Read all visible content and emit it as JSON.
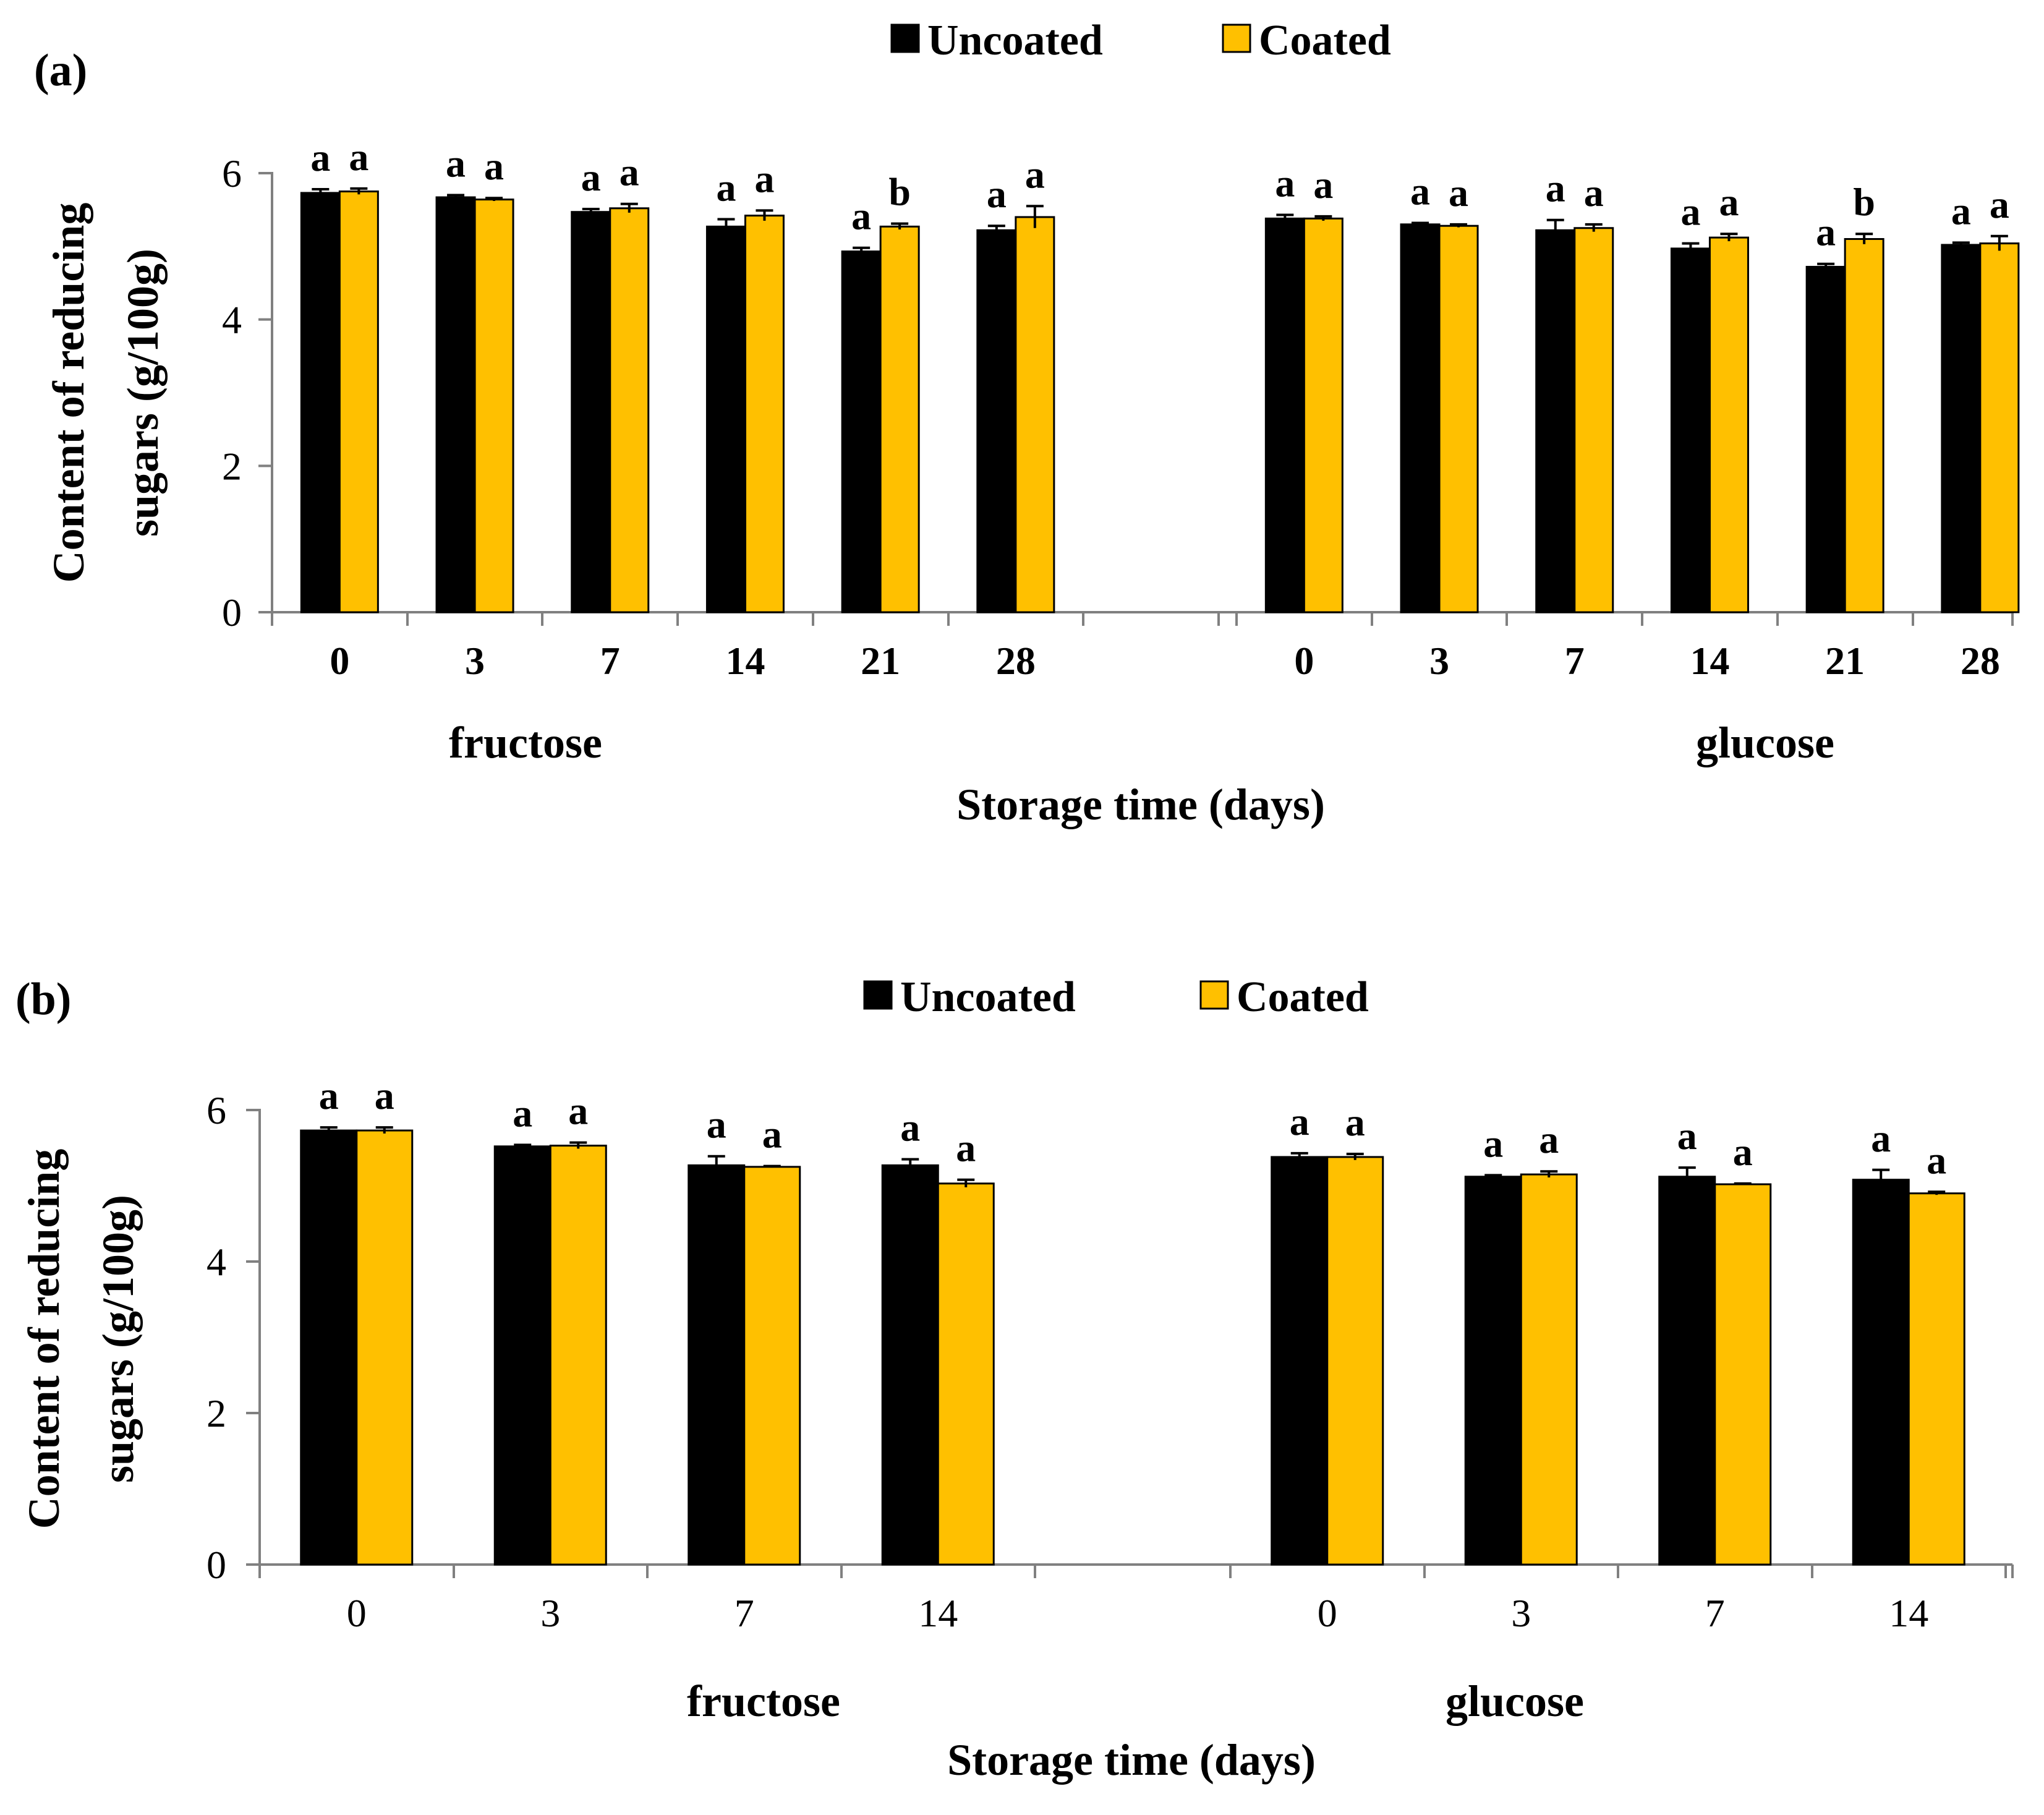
{
  "chart_data": [
    {
      "panel_label": "(a)",
      "type": "bar",
      "ylabel_line1": "Content of reducing",
      "ylabel_line2": "sugars (g/100g)",
      "xlabel": "Storage time (days)",
      "ylim": [
        0,
        6
      ],
      "yticks": [
        "0",
        "2",
        "4",
        "6"
      ],
      "legend": [
        "Uncoated",
        "Coated"
      ],
      "groups": [
        {
          "name": "fructose",
          "categories": [
            "0",
            "3",
            "7",
            "14",
            "21",
            "28"
          ],
          "series": [
            {
              "name": "Uncoated",
              "values": [
                5.73,
                5.67,
                5.47,
                5.27,
                4.93,
                5.22
              ],
              "errors": [
                0.05,
                0.03,
                0.04,
                0.1,
                0.05,
                0.06
              ],
              "letters": [
                "a",
                "a",
                "a",
                "a",
                "a",
                "a"
              ]
            },
            {
              "name": "Coated",
              "values": [
                5.75,
                5.64,
                5.52,
                5.42,
                5.27,
                5.4
              ],
              "errors": [
                0.04,
                0.02,
                0.06,
                0.07,
                0.04,
                0.15
              ],
              "letters": [
                "a",
                "a",
                "a",
                "a",
                "b",
                "a"
              ]
            }
          ]
        },
        {
          "name": "glucose",
          "categories": [
            "0",
            "3",
            "7",
            "14",
            "21",
            "28"
          ],
          "series": [
            {
              "name": "Uncoated",
              "values": [
                5.38,
                5.3,
                5.22,
                4.97,
                4.72,
                5.02
              ],
              "errors": [
                0.05,
                0.02,
                0.14,
                0.07,
                0.04,
                0.03
              ],
              "letters": [
                "a",
                "a",
                "a",
                "a",
                "a",
                "a"
              ]
            },
            {
              "name": "Coated",
              "values": [
                5.38,
                5.28,
                5.25,
                5.12,
                5.1,
                5.04
              ],
              "errors": [
                0.03,
                0.02,
                0.05,
                0.05,
                0.07,
                0.1
              ],
              "letters": [
                "a",
                "a",
                "a",
                "a",
                "b",
                "a"
              ]
            }
          ]
        }
      ]
    },
    {
      "panel_label": "(b)",
      "type": "bar",
      "ylabel_line1": "Content of reducing",
      "ylabel_line2": "sugars (g/100g)",
      "xlabel": "Storage time (days)",
      "ylim": [
        0,
        6
      ],
      "yticks": [
        "0",
        "2",
        "4",
        "6"
      ],
      "legend": [
        "Uncoated",
        "Coated"
      ],
      "groups": [
        {
          "name": "fructose",
          "categories": [
            "0",
            "3",
            "7",
            "14"
          ],
          "series": [
            {
              "name": "Uncoated",
              "values": [
                5.73,
                5.52,
                5.27,
                5.27
              ],
              "errors": [
                0.04,
                0.02,
                0.12,
                0.08
              ],
              "letters": [
                "a",
                "a",
                "a",
                "a"
              ]
            },
            {
              "name": "Coated",
              "values": [
                5.73,
                5.53,
                5.25,
                5.03
              ],
              "errors": [
                0.04,
                0.04,
                0.01,
                0.05
              ],
              "letters": [
                "a",
                "a",
                "a",
                "a"
              ]
            }
          ]
        },
        {
          "name": "glucose",
          "categories": [
            "0",
            "3",
            "7",
            "14"
          ],
          "series": [
            {
              "name": "Uncoated",
              "values": [
                5.38,
                5.12,
                5.12,
                5.08
              ],
              "errors": [
                0.05,
                0.02,
                0.12,
                0.13
              ],
              "letters": [
                "a",
                "a",
                "a",
                "a"
              ]
            },
            {
              "name": "Coated",
              "values": [
                5.38,
                5.15,
                5.02,
                4.9
              ],
              "errors": [
                0.04,
                0.04,
                0.01,
                0.02
              ],
              "letters": [
                "a",
                "a",
                "a",
                "a"
              ]
            }
          ]
        }
      ]
    }
  ],
  "colors": {
    "uncoated": "#000000",
    "coated": "#FFC000",
    "axis": "#808080"
  }
}
